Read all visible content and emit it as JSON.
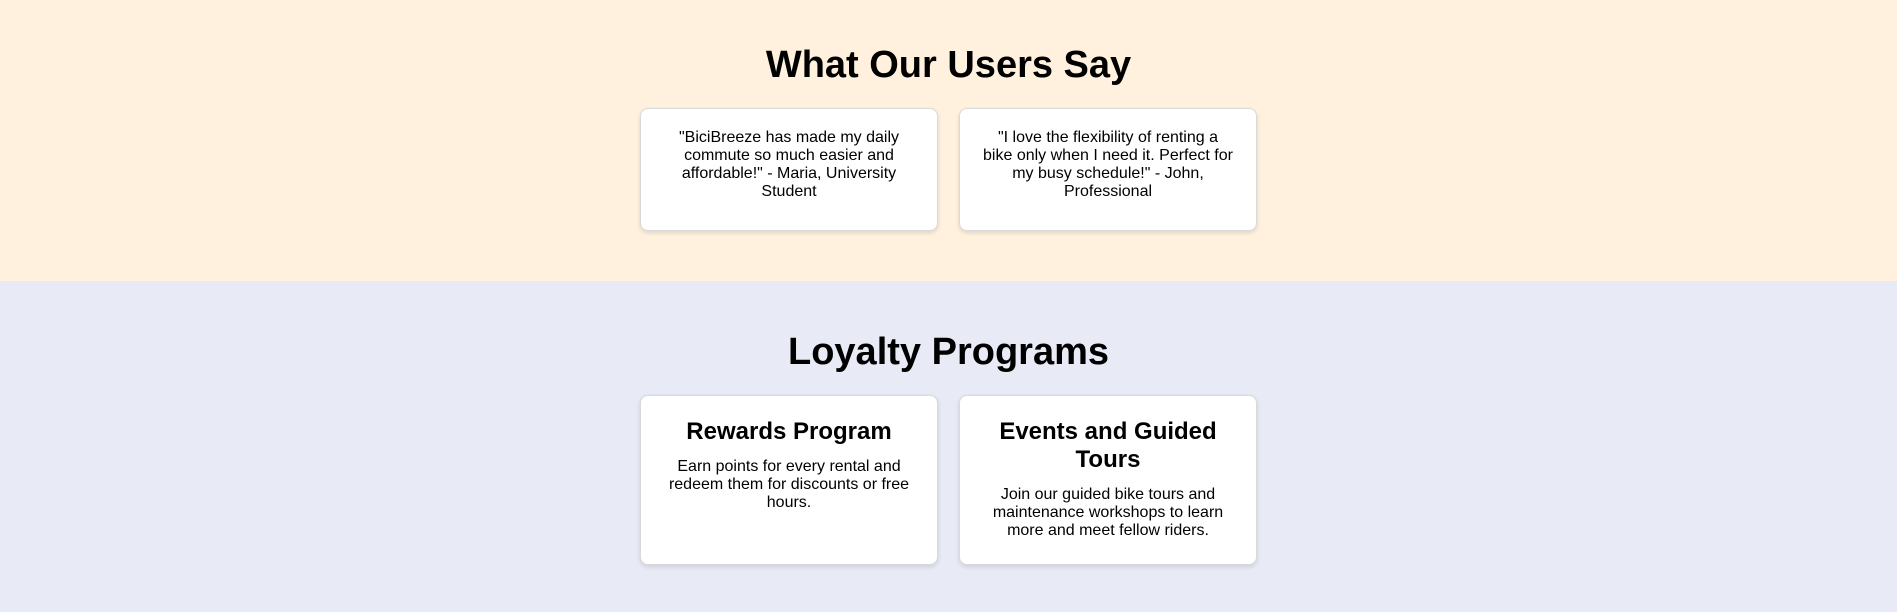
{
  "testimonials": {
    "title": "What Our Users Say",
    "items": [
      {
        "quote": "\"BiciBreeze has made my daily commute so much easier and affordable!\" - Maria, University Student"
      },
      {
        "quote": "\"I love the flexibility of renting a bike only when I need it. Perfect for my busy schedule!\" - John, Professional"
      }
    ]
  },
  "loyalty": {
    "title": "Loyalty Programs",
    "items": [
      {
        "heading": "Rewards Program",
        "text": "Earn points for every rental and redeem them for discounts or free hours."
      },
      {
        "heading": "Events and Guided Tours",
        "text": "Join our guided bike tours and maintenance workshops to learn more and meet fellow riders."
      }
    ]
  },
  "colors": {
    "testimonials_bg": "#fff1dd",
    "loyalty_bg": "#e8eaf6",
    "card_bg": "#ffffff"
  }
}
